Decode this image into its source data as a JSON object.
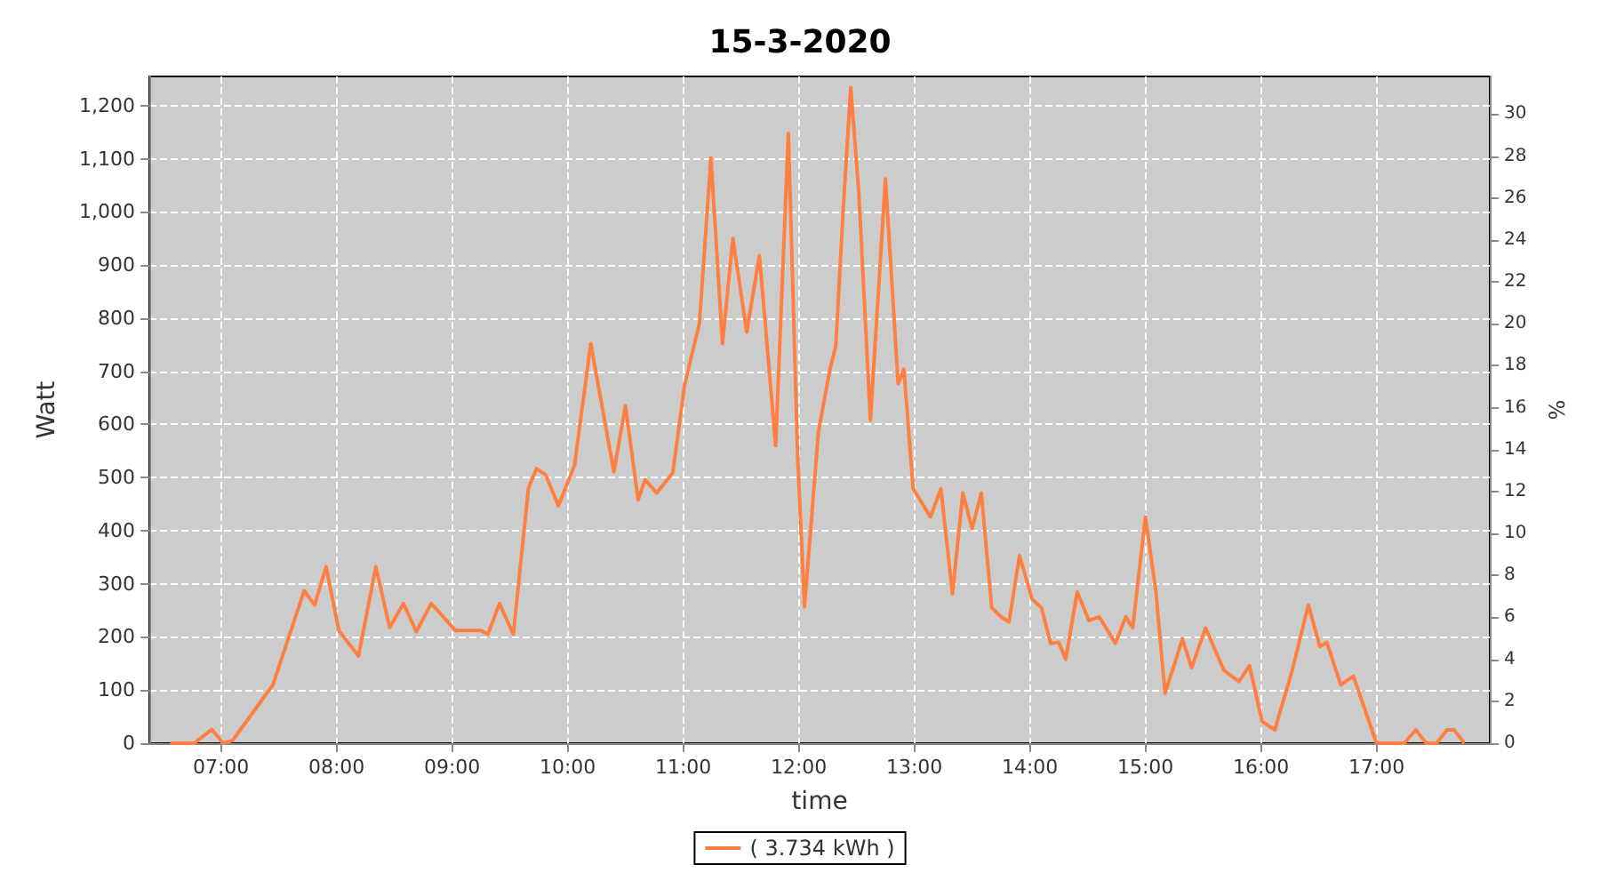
{
  "chart_data": {
    "type": "line",
    "title": "15-3-2020",
    "xlabel": "time",
    "ylabel": "Watt",
    "y2label": "%",
    "xlim": [
      6.38,
      17.98
    ],
    "xticks": [
      {
        "value": 7,
        "label": "07:00"
      },
      {
        "value": 8,
        "label": "08:00"
      },
      {
        "value": 9,
        "label": "09:00"
      },
      {
        "value": 10,
        "label": "10:00"
      },
      {
        "value": 11,
        "label": "11:00"
      },
      {
        "value": 12,
        "label": "12:00"
      },
      {
        "value": 13,
        "label": "13:00"
      },
      {
        "value": 14,
        "label": "14:00"
      },
      {
        "value": 15,
        "label": "15:00"
      },
      {
        "value": 16,
        "label": "16:00"
      },
      {
        "value": 17,
        "label": "17:00"
      }
    ],
    "ylim": [
      0,
      1255
    ],
    "yticks": [
      0,
      100,
      200,
      300,
      400,
      500,
      600,
      700,
      800,
      900,
      {
        "value": 1000,
        "label": "1,000"
      },
      {
        "value": 1100,
        "label": "1,100"
      },
      {
        "value": 1200,
        "label": "1,200"
      }
    ],
    "y2lim": [
      0,
      31.8
    ],
    "y2ticks": [
      0,
      2,
      4,
      6,
      8,
      10,
      12,
      14,
      16,
      18,
      20,
      22,
      24,
      26,
      28,
      30
    ],
    "grid": true,
    "legend": "bottom",
    "marker": "none",
    "line_style": "solid",
    "series": [
      {
        "name": "( 3.734 kWh )",
        "color": "#ff7f40",
        "x": [
          6.56,
          6.77,
          6.92,
          7.02,
          7.1,
          7.45,
          7.72,
          7.81,
          7.91,
          8.02,
          8.19,
          8.34,
          8.46,
          8.58,
          8.69,
          8.82,
          9.03,
          9.25,
          9.31,
          9.41,
          9.53,
          9.66,
          9.73,
          9.81,
          9.92,
          10.06,
          10.2,
          10.4,
          10.5,
          10.61,
          10.67,
          10.77,
          10.91,
          11.01,
          11.14,
          11.24,
          11.34,
          11.43,
          11.55,
          11.66,
          11.8,
          11.91,
          11.99,
          12.05,
          12.17,
          12.27,
          12.32,
          12.39,
          12.45,
          12.52,
          12.62,
          12.75,
          12.86,
          12.91,
          12.99,
          13.14,
          13.23,
          13.33,
          13.42,
          13.5,
          13.58,
          13.67,
          13.75,
          13.82,
          13.91,
          14.02,
          14.1,
          14.18,
          14.25,
          14.31,
          14.41,
          14.51,
          14.6,
          14.74,
          14.83,
          14.89,
          15.0,
          15.09,
          15.17,
          15.32,
          15.4,
          15.52,
          15.68,
          15.81,
          15.9,
          16.01,
          16.12,
          16.27,
          16.41,
          16.51,
          16.57,
          16.69,
          16.8,
          17.0,
          17.24,
          17.34,
          17.43,
          17.52,
          17.61,
          17.67,
          17.76
        ],
        "values": [
          0,
          0,
          26,
          0,
          5,
          110,
          287,
          260,
          332,
          212,
          164,
          332,
          218,
          263,
          210,
          263,
          212,
          212,
          205,
          263,
          205,
          479,
          517,
          505,
          447,
          523,
          752,
          511,
          635,
          458,
          496,
          471,
          509,
          672,
          790,
          1102,
          752,
          950,
          774,
          918,
          560,
          1148,
          543,
          257,
          586,
          704,
          747,
          1025,
          1234,
          1036,
          608,
          1062,
          677,
          704,
          479,
          426,
          479,
          281,
          471,
          404,
          471,
          255,
          238,
          228,
          353,
          271,
          255,
          188,
          190,
          158,
          285,
          231,
          238,
          188,
          238,
          217,
          426,
          287,
          94,
          196,
          142,
          217,
          137,
          116,
          146,
          41,
          25,
          137,
          260,
          182,
          190,
          110,
          126,
          0,
          0,
          25,
          0,
          0,
          25,
          25,
          0
        ]
      }
    ]
  }
}
